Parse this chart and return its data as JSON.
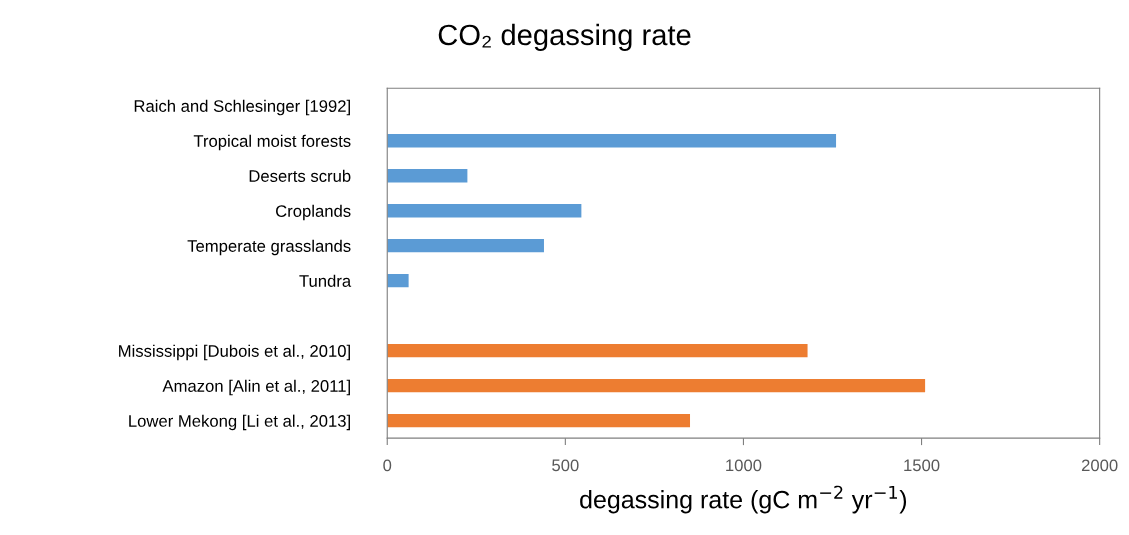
{
  "chart_data": {
    "type": "bar",
    "orientation": "horizontal",
    "title": "CO₂ degassing rate",
    "xlabel": "degassing rate (gC m$^{−2}$ yr$^{−1}$)",
    "categories": [
      "Raich and Schlesinger [1992]",
      "Tropical moist forests",
      "Deserts scrub",
      "Croplands",
      "Temperate grasslands",
      "Tundra",
      null,
      "Mississippi [Dubois et al., 2010]",
      "Amazon [Alin et al., 2011]",
      "Lower Mekong [Li et al., 2013]"
    ],
    "values": [
      null,
      1260,
      225,
      545,
      440,
      60,
      null,
      1180,
      1510,
      850
    ],
    "colors": [
      "#5b9bd5",
      "#5b9bd5",
      "#5b9bd5",
      "#5b9bd5",
      "#5b9bd5",
      "#5b9bd5",
      "#5b9bd5",
      "#ed7d31",
      "#ed7d31",
      "#ed7d31"
    ],
    "xlim": [
      0,
      2000
    ],
    "xticks": [
      0,
      500,
      1000,
      1500,
      2000
    ],
    "grid": false,
    "legend": false
  }
}
